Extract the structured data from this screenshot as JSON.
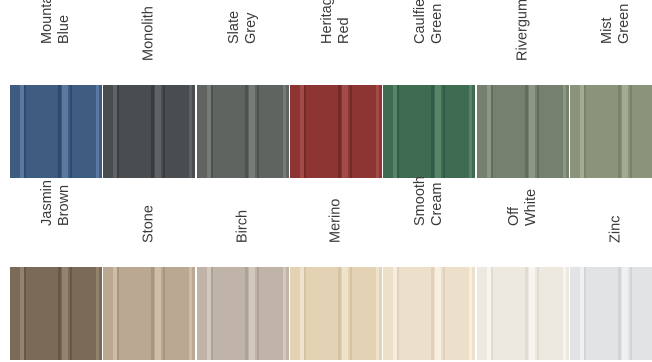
{
  "swatches": [
    {
      "lines": [
        "Mountain",
        "Blue"
      ],
      "color": "#3e5c80",
      "light": "#5a78a0",
      "dark": "#2f4a6a"
    },
    {
      "lines": [
        "Monolith"
      ],
      "color": "#4a4d4f",
      "light": "#606366",
      "dark": "#3a3c3e"
    },
    {
      "lines": [
        "Slate",
        "Grey"
      ],
      "color": "#5f6460",
      "light": "#777b76",
      "dark": "#4e524e"
    },
    {
      "lines": [
        "Heritage",
        "Red"
      ],
      "color": "#8d3533",
      "light": "#a24b48",
      "dark": "#742a28"
    },
    {
      "lines": [
        "Caulfield",
        "Green"
      ],
      "color": "#3f6b53",
      "light": "#588568",
      "dark": "#335a45"
    },
    {
      "lines": [
        "Rivergum"
      ],
      "color": "#76806e",
      "light": "#8d9784",
      "dark": "#646d5d"
    },
    {
      "lines": [
        "Mist",
        "Green"
      ],
      "color": "#8b937b",
      "light": "#a3ab92",
      "dark": "#7a826b"
    },
    {
      "lines": [
        "Jasmin",
        "Brown"
      ],
      "color": "#7a6a57",
      "light": "#93836d",
      "dark": "#665846"
    },
    {
      "lines": [
        "Stone"
      ],
      "color": "#bba892",
      "light": "#cdbda9",
      "dark": "#a8957f"
    },
    {
      "lines": [
        "Birch"
      ],
      "color": "#c0b4a8",
      "light": "#d2c8bd",
      "dark": "#aea296"
    },
    {
      "lines": [
        "Merino"
      ],
      "color": "#e4d2b4",
      "light": "#f0e3cc",
      "dark": "#d6c3a3"
    },
    {
      "lines": [
        "Smooth",
        "Cream"
      ],
      "color": "#ece0cb",
      "light": "#f6eee0",
      "dark": "#e0d2ba"
    },
    {
      "lines": [
        "Off",
        "White"
      ],
      "color": "#ede9e0",
      "light": "#f7f5ef",
      "dark": "#e1dcd2"
    },
    {
      "lines": [
        "Zinc"
      ],
      "color": "#e1e3e5",
      "light": "#eff0f2",
      "dark": "#d2d4d6"
    }
  ]
}
